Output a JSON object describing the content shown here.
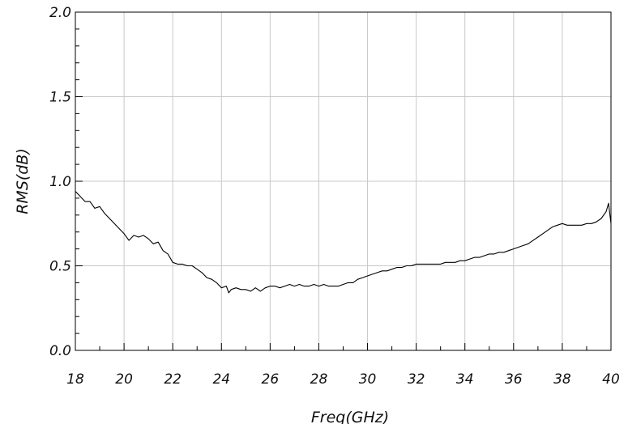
{
  "chart_data": {
    "type": "line",
    "title": "",
    "xlabel": "Freq(GHz)",
    "ylabel": "RMS(dB)",
    "xlim": [
      18,
      40
    ],
    "ylim": [
      0.0,
      2.0
    ],
    "x_ticks": [
      "18",
      "20",
      "22",
      "24",
      "26",
      "28",
      "30",
      "32",
      "34",
      "36",
      "38",
      "40"
    ],
    "y_ticks": [
      "0.0",
      "0.5",
      "1.0",
      "1.5",
      "2.0"
    ],
    "grid": true,
    "series": [
      {
        "name": "",
        "color": "#000000",
        "x": [
          18.0,
          18.2,
          18.4,
          18.6,
          18.8,
          19.0,
          19.2,
          19.4,
          19.6,
          19.8,
          20.0,
          20.2,
          20.4,
          20.6,
          20.8,
          21.0,
          21.2,
          21.4,
          21.6,
          21.8,
          22.0,
          22.2,
          22.4,
          22.6,
          22.8,
          23.0,
          23.2,
          23.4,
          23.6,
          23.8,
          24.0,
          24.2,
          24.3,
          24.4,
          24.6,
          24.8,
          25.0,
          25.2,
          25.4,
          25.6,
          25.8,
          26.0,
          26.2,
          26.4,
          26.6,
          26.8,
          27.0,
          27.2,
          27.4,
          27.6,
          27.8,
          28.0,
          28.2,
          28.4,
          28.6,
          28.8,
          29.0,
          29.2,
          29.4,
          29.6,
          29.8,
          30.0,
          30.2,
          30.4,
          30.6,
          30.8,
          31.0,
          31.2,
          31.4,
          31.6,
          31.8,
          32.0,
          32.2,
          32.4,
          32.6,
          32.8,
          33.0,
          33.2,
          33.4,
          33.6,
          33.8,
          34.0,
          34.2,
          34.4,
          34.6,
          34.8,
          35.0,
          35.2,
          35.4,
          35.6,
          35.8,
          36.0,
          36.2,
          36.4,
          36.6,
          36.8,
          37.0,
          37.2,
          37.4,
          37.6,
          37.8,
          38.0,
          38.2,
          38.4,
          38.6,
          38.8,
          39.0,
          39.2,
          39.4,
          39.6,
          39.8,
          39.9,
          40.0
        ],
        "y": [
          0.94,
          0.91,
          0.88,
          0.88,
          0.84,
          0.85,
          0.81,
          0.78,
          0.75,
          0.72,
          0.69,
          0.65,
          0.68,
          0.67,
          0.68,
          0.66,
          0.63,
          0.64,
          0.59,
          0.57,
          0.52,
          0.51,
          0.51,
          0.5,
          0.5,
          0.48,
          0.46,
          0.43,
          0.42,
          0.4,
          0.37,
          0.38,
          0.34,
          0.36,
          0.37,
          0.36,
          0.36,
          0.35,
          0.37,
          0.35,
          0.37,
          0.38,
          0.38,
          0.37,
          0.38,
          0.39,
          0.38,
          0.39,
          0.38,
          0.38,
          0.39,
          0.38,
          0.39,
          0.38,
          0.38,
          0.38,
          0.39,
          0.4,
          0.4,
          0.42,
          0.43,
          0.44,
          0.45,
          0.46,
          0.47,
          0.47,
          0.48,
          0.49,
          0.49,
          0.5,
          0.5,
          0.51,
          0.51,
          0.51,
          0.51,
          0.51,
          0.51,
          0.52,
          0.52,
          0.52,
          0.53,
          0.53,
          0.54,
          0.55,
          0.55,
          0.56,
          0.57,
          0.57,
          0.58,
          0.58,
          0.59,
          0.6,
          0.61,
          0.62,
          0.63,
          0.65,
          0.67,
          0.69,
          0.71,
          0.73,
          0.74,
          0.75,
          0.74,
          0.74,
          0.74,
          0.74,
          0.75,
          0.75,
          0.76,
          0.78,
          0.82,
          0.87,
          0.75
        ]
      }
    ]
  }
}
